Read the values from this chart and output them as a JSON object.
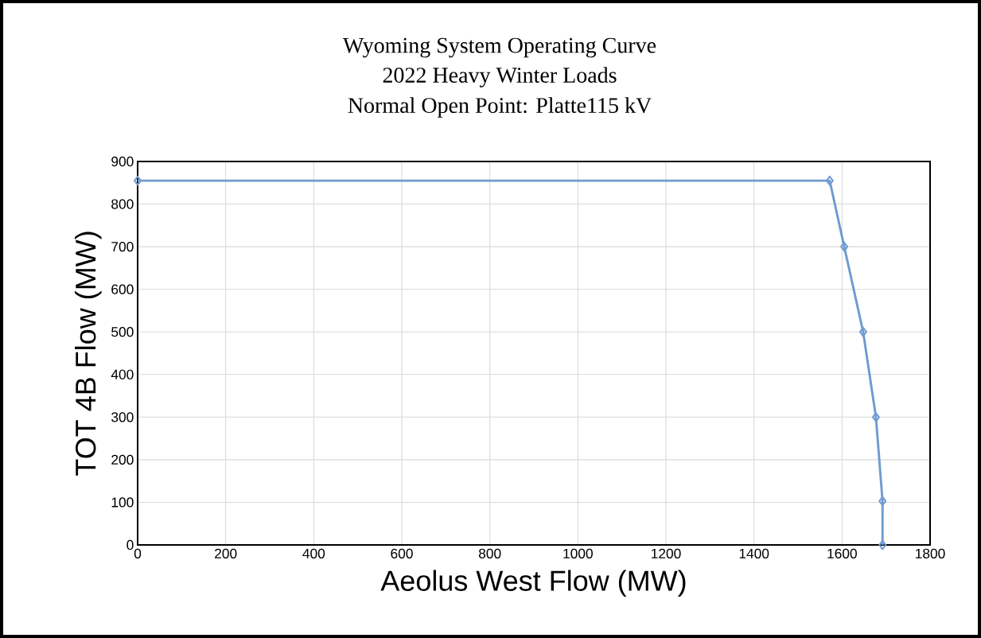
{
  "chart_data": {
    "type": "line",
    "title": "Wyoming System Operating Curve",
    "subtitle": "2022 Heavy Winter Loads",
    "annotations": [
      "Normal Open Point: Platte115 kV"
    ],
    "xlabel": "Aeolus West Flow (MW)",
    "ylabel": "TOT 4B Flow (MW)",
    "x": [
      0,
      1572,
      1605,
      1648,
      1677,
      1692,
      1692
    ],
    "values": [
      855,
      855,
      700,
      500,
      300,
      103,
      0
    ],
    "color": "#6f9bd1",
    "marker": "diamond",
    "line_style": "solid",
    "grid": true,
    "xlim": [
      0,
      1800
    ],
    "xticks": [
      0,
      200,
      400,
      600,
      800,
      1000,
      1200,
      1400,
      1600,
      1800
    ],
    "ylim": [
      0,
      900
    ],
    "yticks": [
      0,
      100,
      200,
      300,
      400,
      500,
      600,
      700,
      800,
      900
    ]
  }
}
